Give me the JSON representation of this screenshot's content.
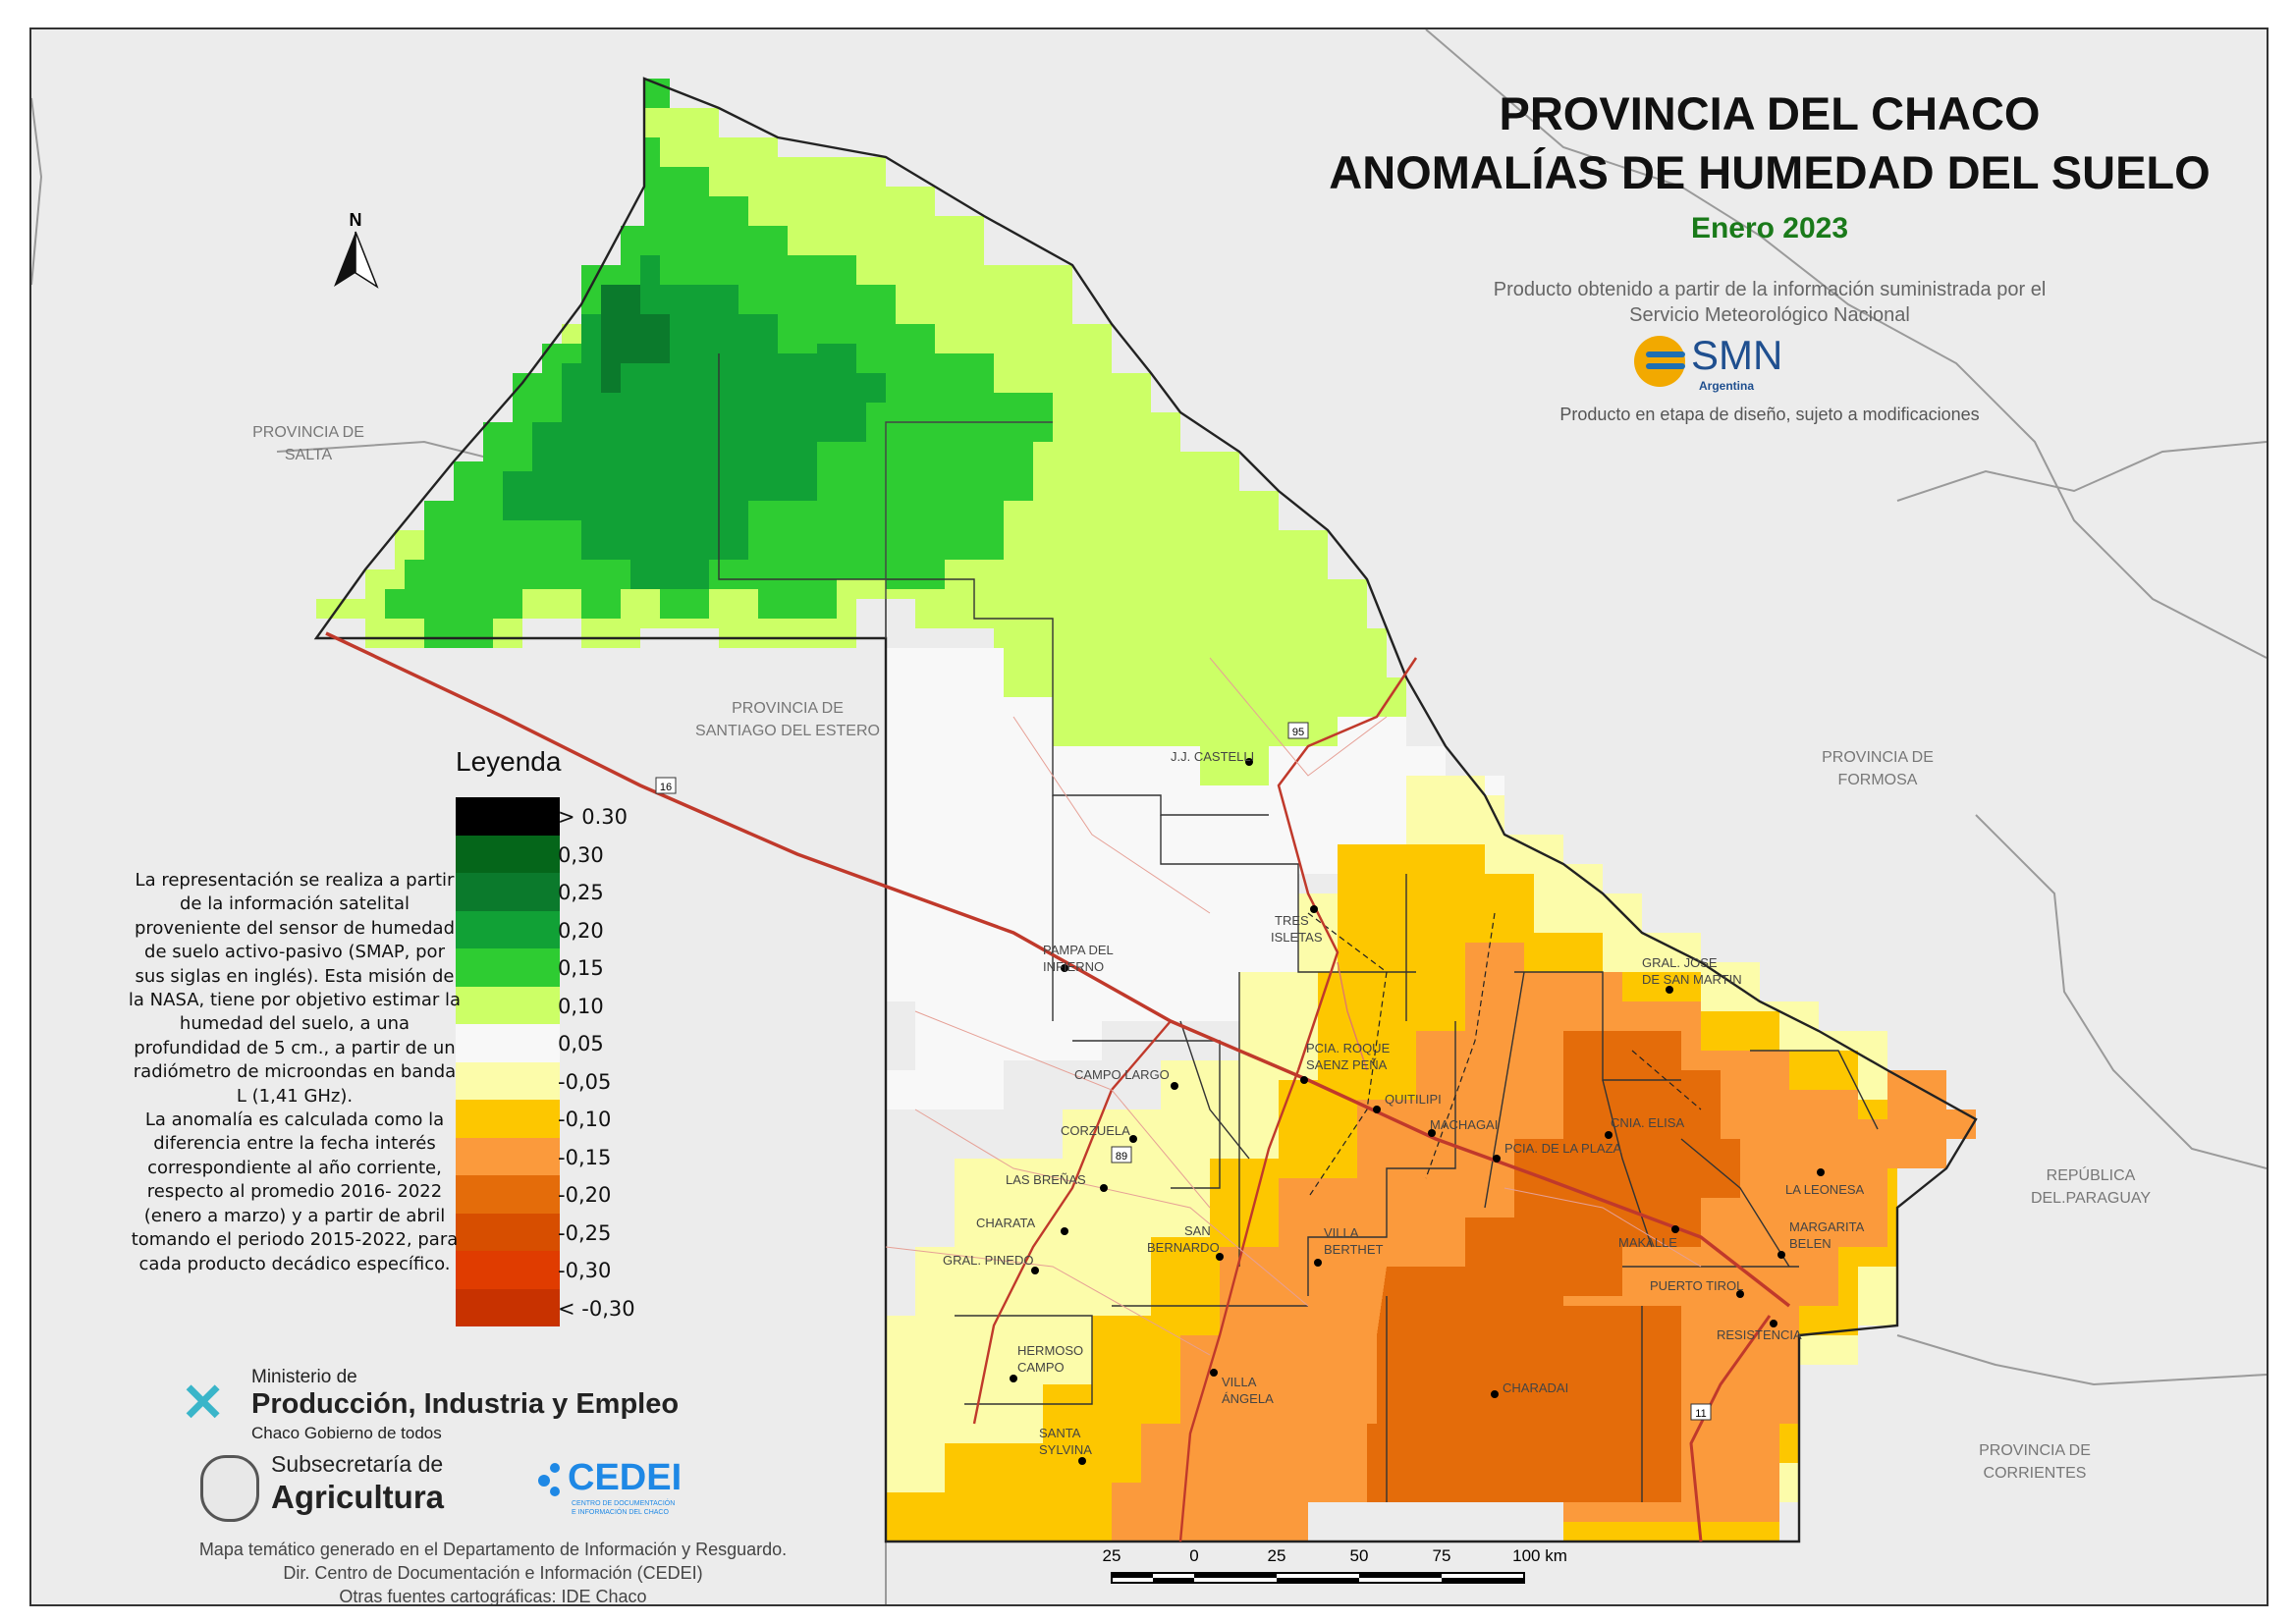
{
  "title": {
    "line1": "PROVINCIA DEL CHACO",
    "line2": "ANOMALÍAS DE HUMEDAD DEL SUELO",
    "date": "Enero 2023",
    "source_line1": "Producto obtenido a partir de la información suministrada por el",
    "source_line2": "Servicio Meteorológico Nacional",
    "smn_logo": "SMN",
    "smn_logo_sub": "Argentina",
    "disclaimer": "Producto en etapa de diseño, sujeto a modificaciones"
  },
  "neighbors": {
    "salta_1": "PROVINCIA DE",
    "salta_2": "SALTA",
    "santiago_1": "PROVINCIA DE",
    "santiago_2": "SANTIAGO DEL ESTERO",
    "formosa_1": "PROVINCIA DE",
    "formosa_2": "FORMOSA",
    "paraguay_1": "REPÚBLICA",
    "paraguay_2": "DEL.PARAGUAY",
    "corrientes_1": "PROVINCIA DE",
    "corrientes_2": "CORRIENTES"
  },
  "north_arrow": "N",
  "routes": {
    "r16": "16",
    "r95": "95",
    "r89": "89",
    "r11": "11"
  },
  "towns": {
    "castelli": "J.J. CASTELLI",
    "tres_1": "TRES",
    "tres_2": "ISLETAS",
    "pampa_1": "PAMPA DEL",
    "pampa_2": "INFIERNO",
    "gral_sm_1": "GRAL. JOSE",
    "gral_sm_2": "DE SAN MARTIN",
    "saenz_1": "PCIA. ROQUE",
    "saenz_2": "SAENZ PEÑA",
    "campo_largo": "CAMPO LARGO",
    "quitilipi": "QUITILIPI",
    "machagai": "MACHAGAI",
    "cnia_elisa": "CNIA. ELISA",
    "corzuela": "CORZUELA",
    "pcia_plaza": "PCIA. DE LA PLAZA",
    "las_brenas": "LAS BREÑAS",
    "la_leonesa": "LA LEONESA",
    "charata": "CHARATA",
    "san_bern_1": "SAN",
    "san_bern_2": "BERNARDO",
    "makalle": "MAKALLE",
    "margarita_1": "MARGARITA",
    "margarita_2": "BELEN",
    "villa_b_1": "VILLA",
    "villa_b_2": "BERTHET",
    "gral_pinedo": "GRAL. PINEDO",
    "puerto_tirol": "PUERTO TIROL",
    "resistencia": "RESISTENCIA",
    "hermoso_1": "HERMOSO",
    "hermoso_2": "CAMPO",
    "villa_a_1": "VILLA",
    "villa_a_2": "ÁNGELA",
    "charadai": "CHARADAI",
    "santa_s_1": "SANTA",
    "santa_s_2": "SYLVINA"
  },
  "legend": {
    "title": "Leyenda",
    "items": [
      {
        "label": "> 0.30",
        "color": "#000000"
      },
      {
        "label": "0,30",
        "color": "#05661a"
      },
      {
        "label": "0,25",
        "color": "#0b7a2c"
      },
      {
        "label": "0,20",
        "color": "#11a136"
      },
      {
        "label": "0,15",
        "color": "#2ecc32"
      },
      {
        "label": "0,10",
        "color": "#ccff66"
      },
      {
        "label": "0,05",
        "color": "#f8f8f8"
      },
      {
        "label": "-0,05",
        "color": "#fcfcaa"
      },
      {
        "label": "-0,10",
        "color": "#fdc700"
      },
      {
        "label": "-0,15",
        "color": "#fb9a3c"
      },
      {
        "label": "-0,20",
        "color": "#e46c0a"
      },
      {
        "label": "-0,25",
        "color": "#d74e00"
      },
      {
        "label": "-0,30",
        "color": "#e03c00"
      },
      {
        "label": "< -0,30",
        "color": "#c83200"
      }
    ]
  },
  "note_lines": [
    "La representación se realiza a partir",
    "de la información satelital",
    "proveniente del sensor de humedad",
    "de suelo activo-pasivo (SMAP, por",
    "sus siglas en inglés). Esta misión de",
    "la NASA, tiene por objetivo estimar la",
    "humedad del suelo, a una",
    "profundidad de 5 cm., a partir de un",
    "radiómetro de microondas en banda",
    "L (1,41 GHz).",
    "La anomalía es calculada como la",
    "diferencia entre la fecha interés",
    "correspondiente al año corriente,",
    "respecto al promedio 2016- 2022",
    "(enero a marzo) y a partir de abril",
    "tomando el periodo 2015-2022, para",
    "cada producto decádico específico."
  ],
  "logos": {
    "ministerio_1": "Ministerio de",
    "ministerio_2": "Producción, Industria y Empleo",
    "ministerio_3": "Chaco Gobierno de todos",
    "subsec_1": "Subsecretaría de",
    "subsec_2": "Agricultura",
    "cedei": "CEDEI",
    "cedei_sub1": "CENTRO DE DOCUMENTACIÓN",
    "cedei_sub2": "E INFORMACIÓN DEL CHACO"
  },
  "credits": [
    "Mapa temático generado en el Departamento de Información y Resguardo.",
    "Dir. Centro de Documentación e Información (CEDEI)",
    "Otras fuentes cartográficas: IDE Chaco"
  ],
  "scale_bar": {
    "labels": [
      "25",
      "0",
      "25",
      "50",
      "75",
      "100 km"
    ]
  },
  "colors": {
    "green_dark": "#0b7a2c",
    "green_mid": "#11a136",
    "green": "#2ecc32",
    "green_light": "#ccff66",
    "neutral": "#f8f8f8",
    "yellow_light": "#fcfcaa",
    "yellow": "#fdc700",
    "orange_light": "#fb9a3c",
    "orange": "#e46c0a",
    "title_date": "#1a7a1a",
    "route": "#c0392b"
  }
}
